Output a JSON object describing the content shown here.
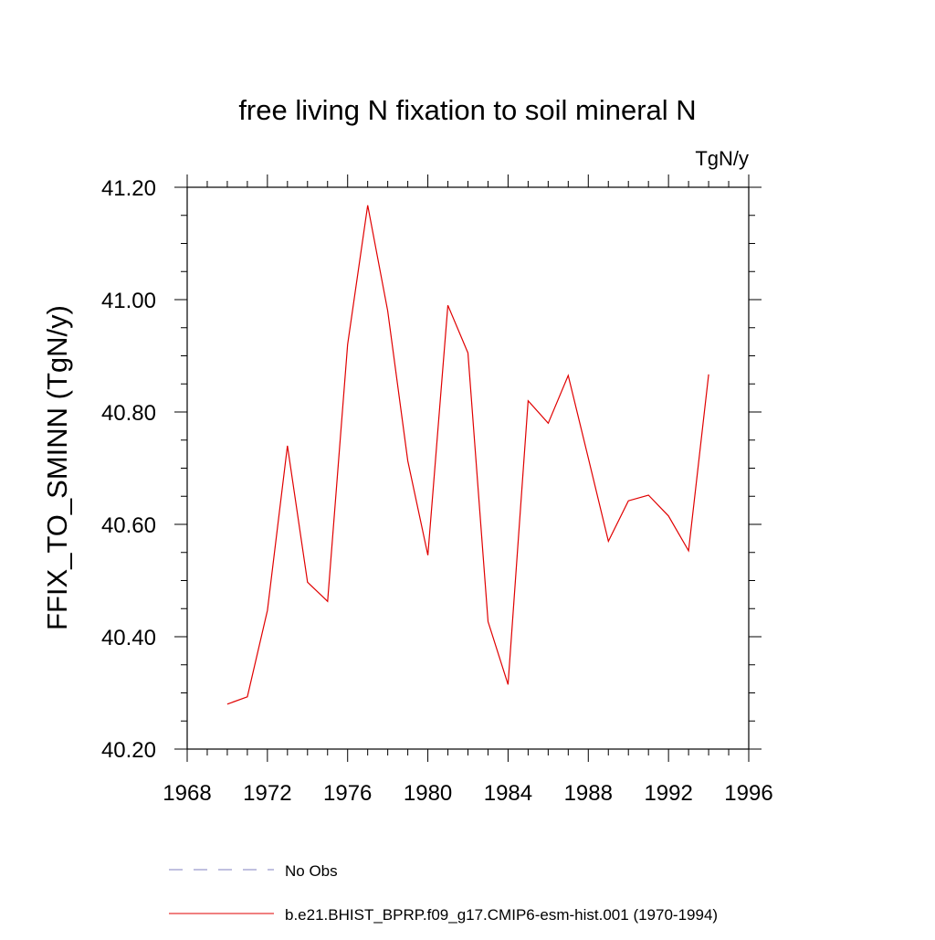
{
  "chart_data": {
    "type": "line",
    "title": "free living N fixation to soil mineral N",
    "units": "TgN/y",
    "ylabel": "FFIX_TO_SMINN  (TgN/y)",
    "xlabel": "",
    "xlim": [
      1968,
      1996
    ],
    "ylim": [
      40.2,
      41.2
    ],
    "xticks": [
      1968,
      1972,
      1976,
      1980,
      1984,
      1988,
      1992,
      1996
    ],
    "yticks": [
      40.2,
      40.4,
      40.6,
      40.8,
      41.0,
      41.2
    ],
    "ytick_labels": [
      "40.20",
      "40.40",
      "40.60",
      "40.80",
      "41.00",
      "41.20"
    ],
    "grid": false,
    "legend_position": "bottom",
    "legend": [
      {
        "label": "No Obs",
        "color": "#8080c0",
        "style": "dashed"
      },
      {
        "label": "b.e21.BHIST_BPRP.f09_g17.CMIP6-esm-hist.001 (1970-1994)",
        "color": "#e00000",
        "style": "solid"
      }
    ],
    "series": [
      {
        "name": "b.e21.BHIST_BPRP.f09_g17.CMIP6-esm-hist.001 (1970-1994)",
        "color": "#e00000",
        "x": [
          1970,
          1971,
          1972,
          1973,
          1974,
          1975,
          1976,
          1977,
          1978,
          1979,
          1980,
          1981,
          1982,
          1983,
          1984,
          1985,
          1986,
          1987,
          1988,
          1989,
          1990,
          1991,
          1992,
          1993,
          1994
        ],
        "values": [
          40.28,
          40.293,
          40.447,
          40.74,
          40.497,
          40.463,
          40.92,
          41.168,
          40.98,
          40.713,
          40.545,
          40.99,
          40.905,
          40.427,
          40.315,
          40.82,
          40.78,
          40.865,
          40.718,
          40.57,
          40.642,
          40.652,
          40.615,
          40.553,
          40.867
        ]
      }
    ]
  }
}
